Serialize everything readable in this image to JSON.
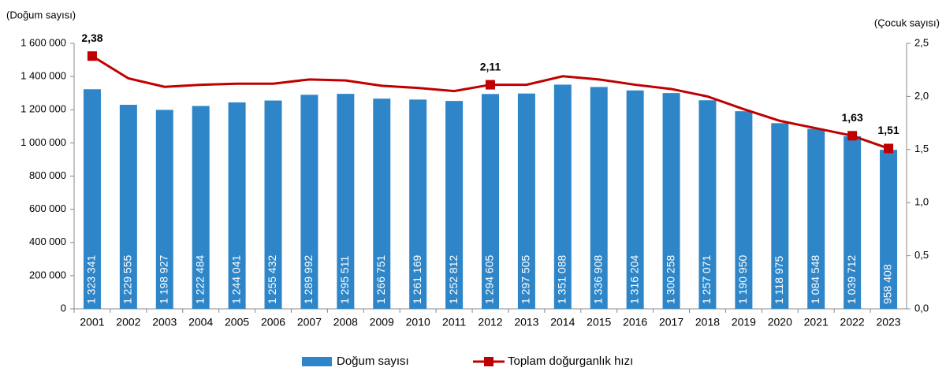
{
  "chart_data": {
    "type": "combo",
    "y_label": "(Doğum sayısı)",
    "y2_label": "(Çocuk sayısı)",
    "categories": [
      "2001",
      "2002",
      "2003",
      "2004",
      "2005",
      "2006",
      "2007",
      "2008",
      "2009",
      "2010",
      "2011",
      "2012",
      "2013",
      "2014",
      "2015",
      "2016",
      "2017",
      "2018",
      "2019",
      "2020",
      "2021",
      "2022",
      "2023"
    ],
    "series": [
      {
        "name": "Doğum sayısı",
        "type": "bar",
        "axis": "y",
        "color": "#2e86c8",
        "values": [
          1323341,
          1229555,
          1198927,
          1222484,
          1244041,
          1255432,
          1289992,
          1295511,
          1266751,
          1261169,
          1252812,
          1294605,
          1297505,
          1351088,
          1336908,
          1316204,
          1300258,
          1257071,
          1190950,
          1118975,
          1084548,
          1039712,
          958408
        ],
        "value_labels": [
          "1 323 341",
          "1 229 555",
          "1 198 927",
          "1 222 484",
          "1 244 041",
          "1 255 432",
          "1 289 992",
          "1 295 511",
          "1 266 751",
          "1 261 169",
          "1 252 812",
          "1 294 605",
          "1 297 505",
          "1 351 088",
          "1 336 908",
          "1 316 204",
          "1 300 258",
          "1 257 071",
          "1 190 950",
          "1 118 975",
          "1 084 548",
          "1 039 712",
          "958 408"
        ]
      },
      {
        "name": "Toplam doğurganlık hızı",
        "type": "line",
        "axis": "y2",
        "color": "#c00000",
        "values": [
          2.38,
          2.17,
          2.09,
          2.11,
          2.12,
          2.12,
          2.16,
          2.15,
          2.1,
          2.08,
          2.05,
          2.11,
          2.11,
          2.19,
          2.16,
          2.11,
          2.07,
          2.0,
          1.88,
          1.77,
          1.7,
          1.63,
          1.51
        ],
        "value_labels": [
          "2,38",
          null,
          null,
          null,
          null,
          null,
          null,
          null,
          null,
          null,
          null,
          "2,11",
          null,
          null,
          null,
          null,
          null,
          null,
          null,
          null,
          null,
          "1,63",
          "1,51"
        ]
      }
    ],
    "ylim": [
      0,
      1600000
    ],
    "yticks": [
      0,
      {
        "value": 200000,
        "label": "200 000"
      },
      {
        "value": 400000,
        "label": "400 000"
      },
      {
        "value": 600000,
        "label": "600 000"
      },
      {
        "value": 800000,
        "label": "800 000"
      },
      {
        "value": 1000000,
        "label": "1 000 000"
      },
      {
        "value": 1200000,
        "label": "1 200 000"
      },
      {
        "value": 1400000,
        "label": "1 400 000"
      },
      {
        "value": 1600000,
        "label": "1 600 000"
      }
    ],
    "y2lim": [
      0,
      2.5
    ],
    "y2ticks": [
      {
        "value": 0,
        "label": "0,0"
      },
      {
        "value": 0.5,
        "label": "0,5"
      },
      {
        "value": 1,
        "label": "1,0"
      },
      {
        "value": 1.5,
        "label": "1,5"
      },
      {
        "value": 2,
        "label": "2,0"
      },
      {
        "value": 2.5,
        "label": "2,5"
      }
    ],
    "grid": false
  }
}
